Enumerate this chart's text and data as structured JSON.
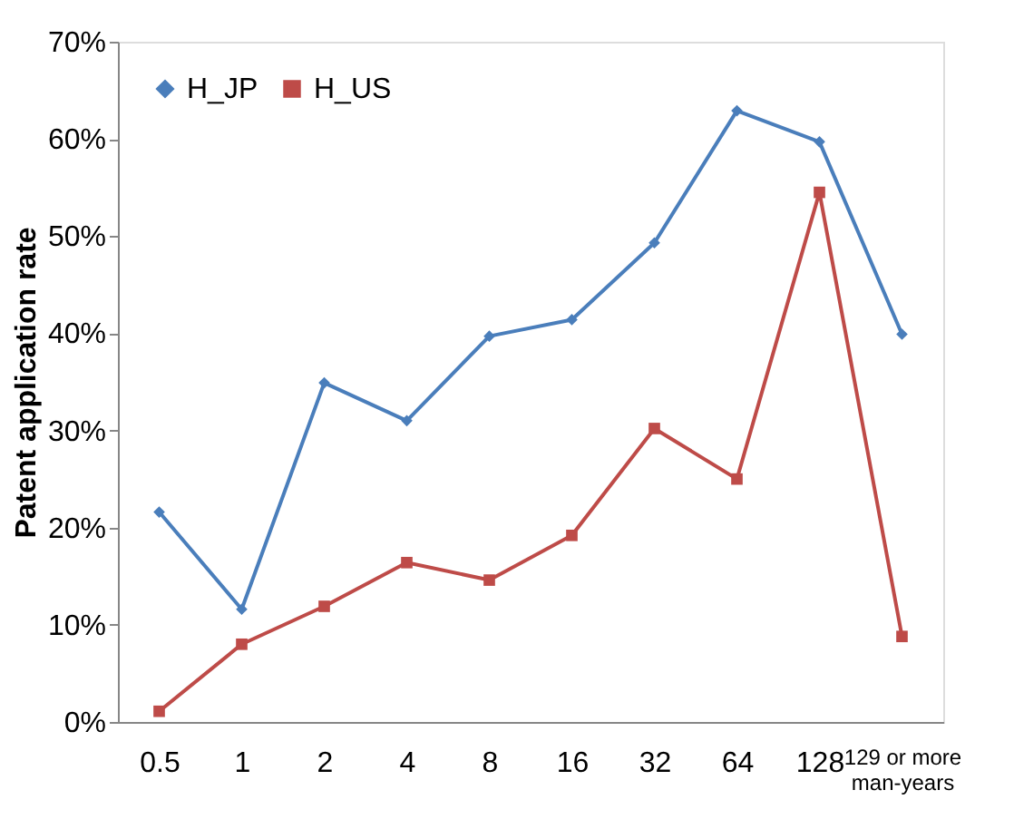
{
  "chart_data": {
    "type": "line",
    "ylabel": "Patent application rate",
    "categories": [
      "0.5",
      "1",
      "2",
      "4",
      "8",
      "16",
      "32",
      "64",
      "128",
      "129 or more\nman-years"
    ],
    "series": [
      {
        "name": "H_JP",
        "color": "#4a7ebb",
        "marker": "diamond",
        "values": [
          21.6,
          11.6,
          34.9,
          31.0,
          39.7,
          41.4,
          49.3,
          62.9,
          59.7,
          39.9
        ]
      },
      {
        "name": "H_US",
        "color": "#be4b48",
        "marker": "square",
        "values": [
          1.1,
          8.0,
          11.9,
          16.4,
          14.6,
          19.2,
          30.2,
          25.0,
          54.5,
          8.8
        ]
      }
    ],
    "ylim": [
      0,
      70
    ],
    "yticks": [
      {
        "value": 0,
        "label": "0%"
      },
      {
        "value": 10,
        "label": "10%"
      },
      {
        "value": 20,
        "label": "20%"
      },
      {
        "value": 30,
        "label": "30%"
      },
      {
        "value": 40,
        "label": "40%"
      },
      {
        "value": 50,
        "label": "50%"
      },
      {
        "value": 60,
        "label": "60%"
      },
      {
        "value": 70,
        "label": "70%"
      }
    ],
    "grid": false,
    "legend": "top left",
    "line_style": "solid"
  }
}
